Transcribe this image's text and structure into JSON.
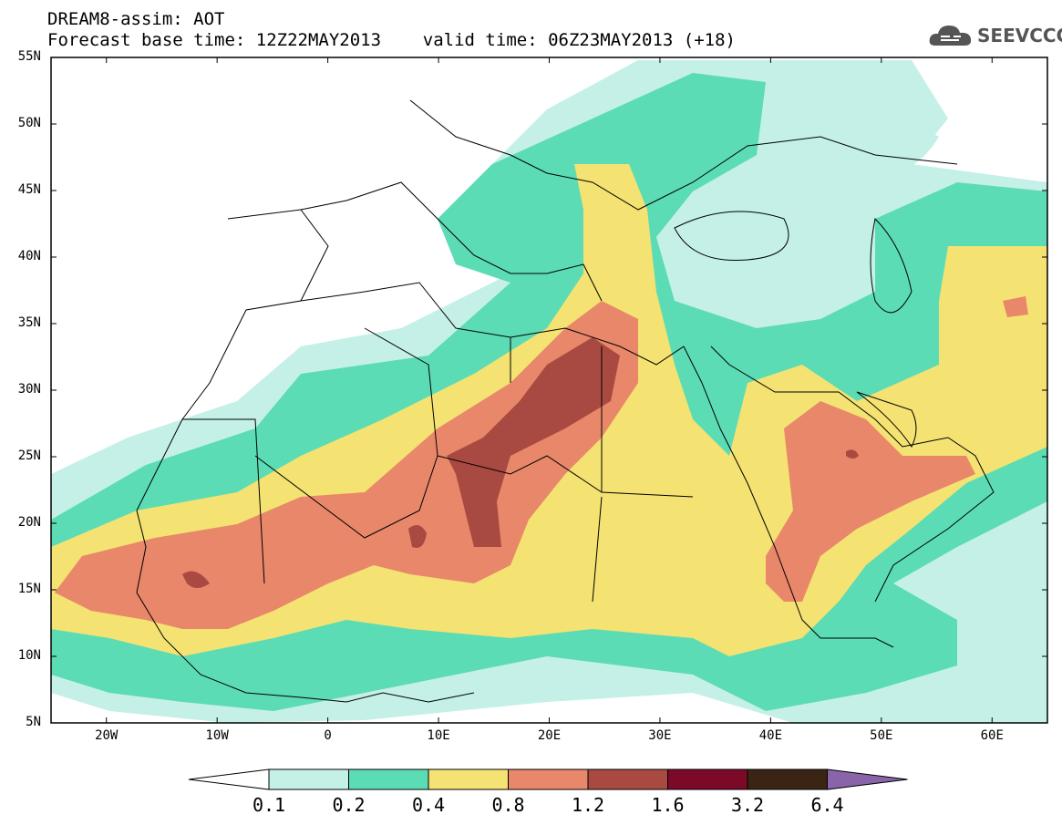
{
  "title": {
    "line1": "DREAM8-assim: AOT",
    "line2": "Forecast base time: 12Z22MAY2013    valid time: 06Z23MAY2013 (+18)"
  },
  "logo": {
    "text": "SEEVCCC",
    "icon": "cloud-icon",
    "color": "#555555"
  },
  "map": {
    "variable": "AOT",
    "lat_range": [
      5,
      55
    ],
    "lon_range": [
      -25,
      65
    ],
    "lat_labels": [
      "55N",
      "50N",
      "45N",
      "40N",
      "35N",
      "30N",
      "25N",
      "20N",
      "15N",
      "10N",
      "5N"
    ],
    "lon_labels": [
      "20W",
      "10W",
      "0",
      "10E",
      "20E",
      "30E",
      "40E",
      "50E",
      "60E"
    ]
  },
  "colorbar": {
    "levels": [
      "0.1",
      "0.2",
      "0.4",
      "0.8",
      "1.2",
      "1.6",
      "3.2",
      "6.4"
    ],
    "colors": [
      "#c4f0e8",
      "#5cdcb4",
      "#f4e272",
      "#e8876a",
      "#a84a42",
      "#7a0a28",
      "#3a2414",
      "#8a64a8"
    ],
    "under_color": "#ffffff",
    "over_color": "#8a64a8"
  }
}
